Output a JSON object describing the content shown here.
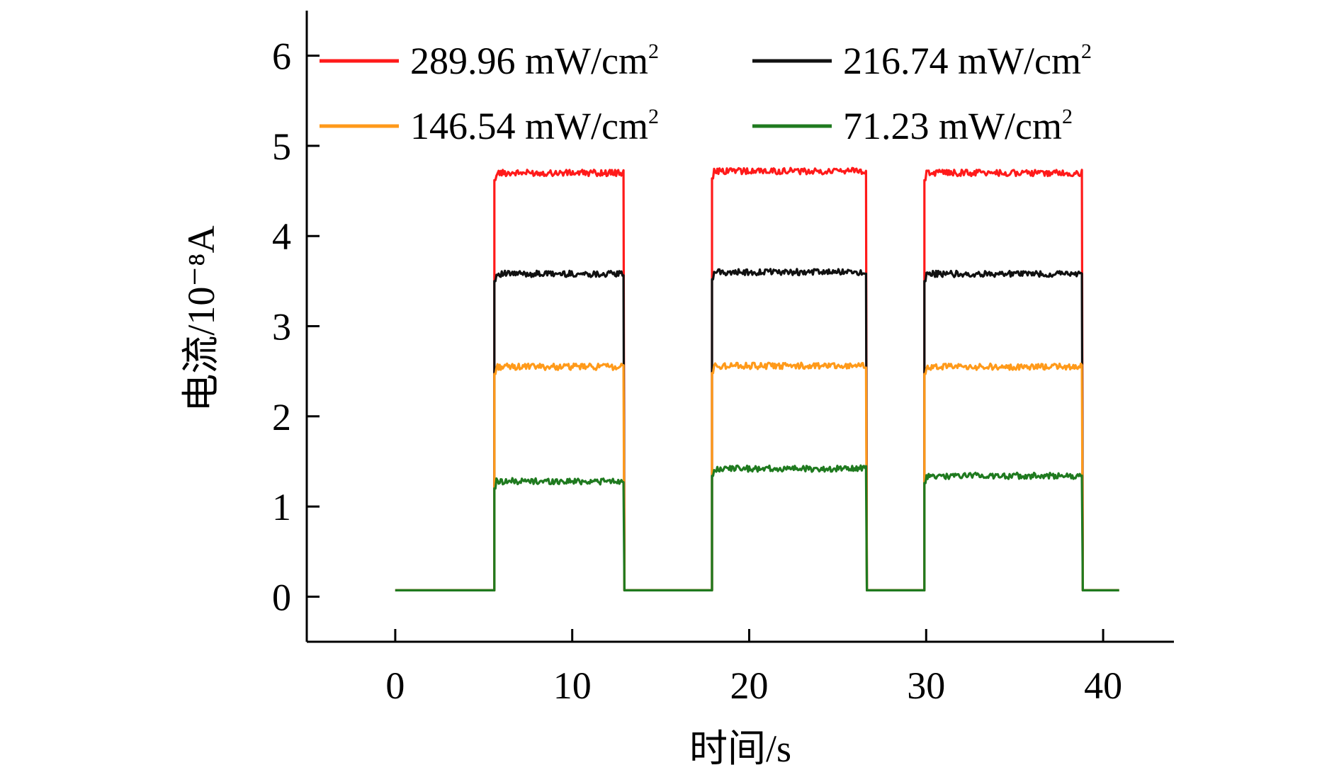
{
  "chart_data": {
    "type": "line",
    "xlabel": "时间/s",
    "ylabel": "电流/10⁻⁸A",
    "xlim": [
      -5,
      44
    ],
    "ylim": [
      -0.5,
      6.5
    ],
    "xticks": [
      "0",
      "10",
      "20",
      "30",
      "40"
    ],
    "yticks": [
      "0",
      "1",
      "2",
      "3",
      "4",
      "5",
      "6"
    ],
    "grid": false,
    "legend_position": "top",
    "pulses": [
      [
        5.6,
        12.9
      ],
      [
        17.9,
        26.6
      ],
      [
        29.9,
        38.8
      ]
    ],
    "baseline": 0.07,
    "series": [
      {
        "name": "289.96 mW/cm",
        "superscript": "2",
        "color": "#ff1a1a",
        "on_levels": [
          4.7,
          4.72,
          4.7
        ]
      },
      {
        "name": "216.74 mW/cm",
        "superscript": "2",
        "color": "#111111",
        "on_levels": [
          3.58,
          3.6,
          3.58
        ]
      },
      {
        "name": "146.54 mW/cm",
        "superscript": "2",
        "color": "#ff9a1a",
        "on_levels": [
          2.55,
          2.56,
          2.55
        ]
      },
      {
        "name": "71.23 mW/cm",
        "superscript": "2",
        "color": "#1f7a1f",
        "on_levels": [
          1.28,
          1.42,
          1.34
        ]
      }
    ]
  }
}
